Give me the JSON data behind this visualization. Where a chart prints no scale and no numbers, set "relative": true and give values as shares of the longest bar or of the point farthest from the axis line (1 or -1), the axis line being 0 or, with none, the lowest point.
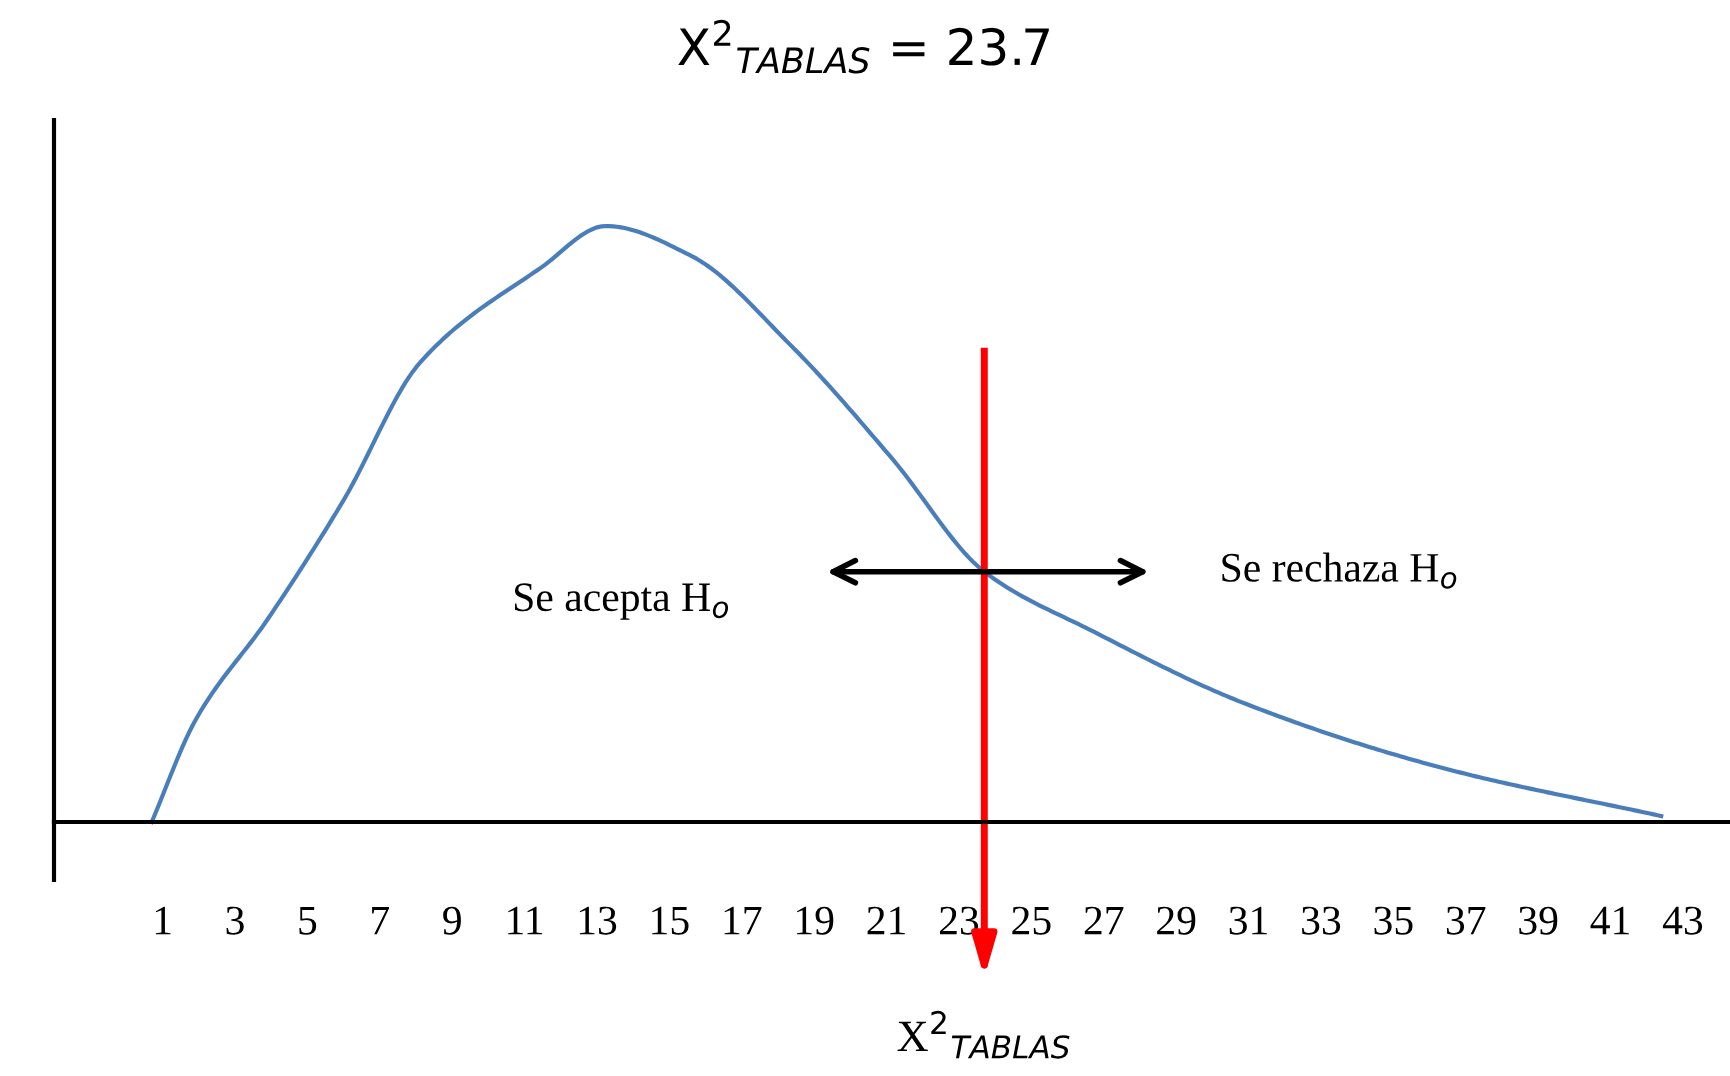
{
  "chart_data": {
    "type": "line",
    "title": "X$^{2}$$_{TABLAS}$ = 23.7",
    "relative": true,
    "x": [
      0.7,
      1.9,
      3.9,
      6.0,
      8.1,
      11.45,
      13.25,
      15.6,
      18.35,
      21.15,
      23.7,
      26.7,
      30.85,
      36.4,
      42.4
    ],
    "series": [
      {
        "color": "#4a7ebb",
        "values": [
          0,
          0.17,
          0.34,
          0.54,
          0.77,
          0.93,
          1.0,
          0.95,
          0.8,
          0.61,
          0.42,
          0.32,
          0.2,
          0.09,
          0.01
        ]
      }
    ],
    "xlim": [
      -2,
      44.3
    ],
    "xticks": [
      1,
      3,
      5,
      7,
      9,
      11,
      13,
      15,
      17,
      19,
      21,
      23,
      25,
      27,
      29,
      31,
      33,
      35,
      37,
      39,
      41,
      43
    ],
    "ref_lines": [
      {
        "axis": "x",
        "value": 23.7,
        "label": "X$^{2}$$_{TABLAS}$",
        "color": "#ff0000"
      }
    ],
    "annotations": [
      "Se acepta H$_{o}$",
      "Se rechaza H$_{o}$"
    ],
    "grid": false,
    "legend": false,
    "marker": "none",
    "line_style": "solid",
    "tick_labels": "x"
  }
}
